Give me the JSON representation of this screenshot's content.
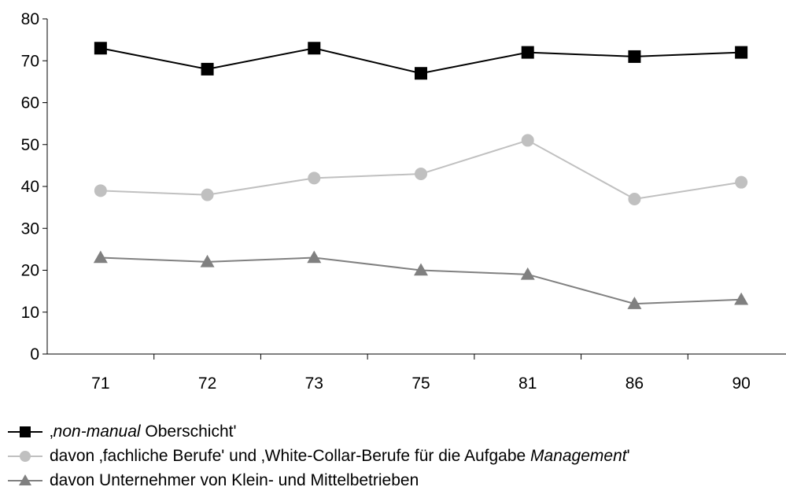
{
  "chart_data": {
    "type": "line",
    "title": "",
    "xlabel": "",
    "ylabel": "",
    "categories": [
      "71",
      "72",
      "73",
      "75",
      "81",
      "86",
      "90"
    ],
    "ylim": [
      0,
      80
    ],
    "yticks": [
      "0",
      "10",
      "20",
      "30",
      "40",
      "50",
      "60",
      "70",
      "80"
    ],
    "grid": false,
    "legend_position": "bottom",
    "series": [
      {
        "name": "‚non-manual Oberschicht'",
        "label_parts": [
          {
            "text": "‚",
            "italic": false
          },
          {
            "text": "non-manual",
            "italic": true
          },
          {
            "text": " Oberschicht'",
            "italic": false
          }
        ],
        "values": [
          73,
          68,
          73,
          67,
          72,
          71,
          72
        ],
        "marker": "square",
        "color": "#000000",
        "marker_color": "#000000"
      },
      {
        "name": "davon ‚fachliche Berufe' und ‚White-Collar-Berufe für die Aufgabe Management'",
        "label_parts": [
          {
            "text": "davon ‚fachliche Berufe' und ‚White-Collar-Berufe für die Aufgabe ",
            "italic": false
          },
          {
            "text": "Management",
            "italic": true
          },
          {
            "text": "'",
            "italic": false
          }
        ],
        "values": [
          39,
          38,
          42,
          43,
          51,
          37,
          41
        ],
        "marker": "circle",
        "color": "#c0c0c0",
        "marker_color": "#c0c0c0"
      },
      {
        "name": "davon Unternehmer von Klein- und Mittelbetrieben",
        "label_parts": [
          {
            "text": "davon Unternehmer von Klein- und Mittelbetrieben",
            "italic": false
          }
        ],
        "values": [
          23,
          22,
          23,
          20,
          19,
          12,
          13
        ],
        "marker": "triangle",
        "color": "#808080",
        "marker_color": "#808080"
      }
    ]
  }
}
